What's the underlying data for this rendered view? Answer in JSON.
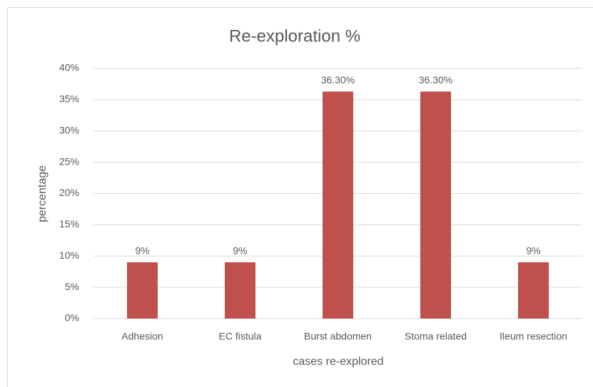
{
  "chart_data": {
    "type": "bar",
    "title": "Re-exploration %",
    "x_label": "cases re-explored",
    "y_label": "percentage",
    "categories": [
      "Adhesion",
      "EC fistula",
      "Burst abdomen",
      "Stoma related",
      "Ileum resection"
    ],
    "values": [
      9,
      9,
      36.3,
      36.3,
      9
    ],
    "value_labels": [
      "9%",
      "9%",
      "36.30%",
      "36.30%",
      "9%"
    ],
    "color": "#c0504d",
    "ylim": [
      0,
      40
    ],
    "yticks": [
      {
        "value": 0,
        "label": "0%"
      },
      {
        "value": 5,
        "label": "5%"
      },
      {
        "value": 10,
        "label": "10%"
      },
      {
        "value": 15,
        "label": "15%"
      },
      {
        "value": 20,
        "label": "20%"
      },
      {
        "value": 25,
        "label": "25%"
      },
      {
        "value": 30,
        "label": "30%"
      },
      {
        "value": 35,
        "label": "35%"
      },
      {
        "value": 40,
        "label": "40%"
      }
    ],
    "grid": true
  }
}
